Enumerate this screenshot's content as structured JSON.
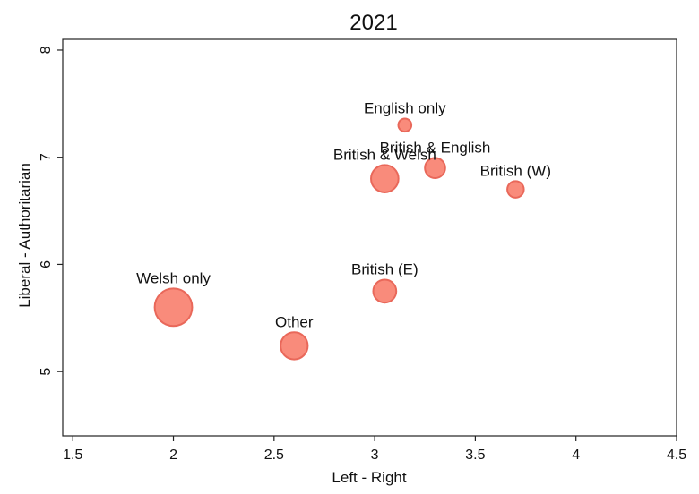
{
  "chart_data": {
    "type": "scatter",
    "title": "2021",
    "xlabel": "Left - Right",
    "ylabel": "Liberal - Authoritarian",
    "xlim": [
      1.45,
      4.5
    ],
    "ylim": [
      4.4,
      8.1
    ],
    "xticks": [
      1.5,
      2,
      2.5,
      3,
      3.5,
      4,
      4.5
    ],
    "yticks": [
      5,
      6,
      7,
      8
    ],
    "xtick_labels": [
      "1.5",
      "2",
      "2.5",
      "3",
      "3.5",
      "4",
      "4.5"
    ],
    "ytick_labels": [
      "5",
      "6",
      "7",
      "8"
    ],
    "grid": false,
    "bubble_color": "#f98b7b",
    "bubble_edge_color": "#e9685a",
    "points": [
      {
        "label": "English only",
        "x": 3.15,
        "y": 7.3,
        "size": 1
      },
      {
        "label": "British & English",
        "x": 3.3,
        "y": 6.9,
        "size": 2.4
      },
      {
        "label": "British & Welsh",
        "x": 3.05,
        "y": 6.8,
        "size": 4.4
      },
      {
        "label": "British (W)",
        "x": 3.7,
        "y": 6.7,
        "size": 1.6
      },
      {
        "label": "British (E)",
        "x": 3.05,
        "y": 5.75,
        "size": 3.1
      },
      {
        "label": "Welsh only",
        "x": 2.0,
        "y": 5.6,
        "size": 8.2
      },
      {
        "label": "Other",
        "x": 2.6,
        "y": 5.24,
        "size": 4.3
      }
    ]
  }
}
